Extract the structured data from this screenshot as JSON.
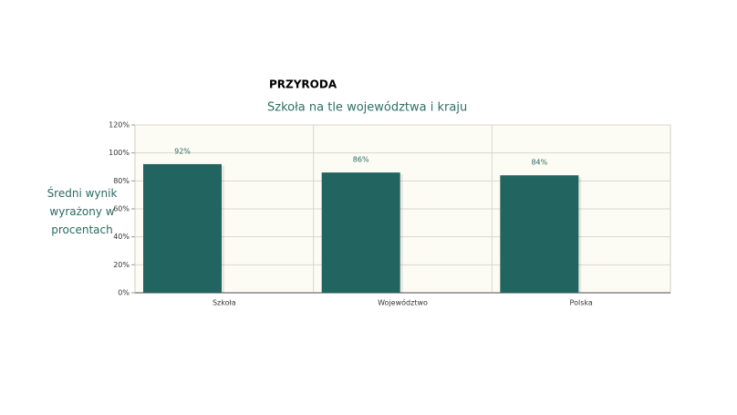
{
  "chart_data": {
    "type": "bar",
    "title": "PRZYRODA",
    "subtitle": "Szkoła na tle województwa i kraju",
    "y_label": "Średni wynik wyrażony w procentach",
    "categories": [
      "Szkoła",
      "Województwo",
      "Polska"
    ],
    "values": [
      92,
      86,
      84
    ],
    "value_labels": [
      "92%",
      "86%",
      "84%"
    ],
    "color": "#216460",
    "ylim": [
      0,
      120
    ],
    "yticks": [
      {
        "value": 0,
        "label": "0%"
      },
      {
        "value": 20,
        "label": "20%"
      },
      {
        "value": 40,
        "label": "40%"
      },
      {
        "value": 60,
        "label": "60%"
      },
      {
        "value": 80,
        "label": "80%"
      },
      {
        "value": 100,
        "label": "100%"
      },
      {
        "value": 120,
        "label": "120%"
      }
    ],
    "grid": true
  }
}
